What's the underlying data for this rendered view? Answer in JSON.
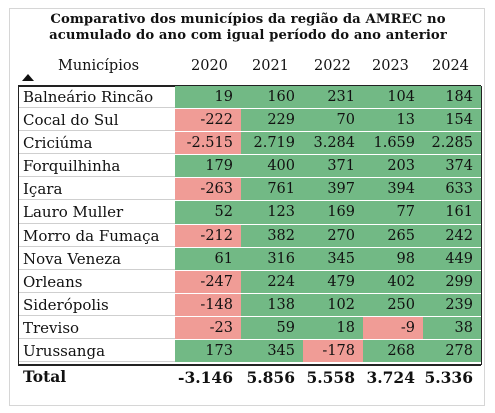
{
  "title": "Comparativo dos municípios da região da AMREC no acumulado do ano com igual período do ano anterior",
  "header": {
    "municipios": "Municípios",
    "years": [
      "2020",
      "2021",
      "2022",
      "2023",
      "2024"
    ]
  },
  "rows": [
    {
      "name": "Balneário Rincão",
      "values": [
        "19",
        "160",
        "231",
        "104",
        "184"
      ],
      "neg": [
        false,
        false,
        false,
        false,
        false
      ]
    },
    {
      "name": "Cocal do Sul",
      "values": [
        "-222",
        "229",
        "70",
        "13",
        "154"
      ],
      "neg": [
        true,
        false,
        false,
        false,
        false
      ]
    },
    {
      "name": "Criciúma",
      "values": [
        "-2.515",
        "2.719",
        "3.284",
        "1.659",
        "2.285"
      ],
      "neg": [
        true,
        false,
        false,
        false,
        false
      ]
    },
    {
      "name": "Forquilhinha",
      "values": [
        "179",
        "400",
        "371",
        "203",
        "374"
      ],
      "neg": [
        false,
        false,
        false,
        false,
        false
      ]
    },
    {
      "name": "Içara",
      "values": [
        "-263",
        "761",
        "397",
        "394",
        "633"
      ],
      "neg": [
        true,
        false,
        false,
        false,
        false
      ]
    },
    {
      "name": "Lauro Muller",
      "values": [
        "52",
        "123",
        "169",
        "77",
        "161"
      ],
      "neg": [
        false,
        false,
        false,
        false,
        false
      ]
    },
    {
      "name": "Morro da Fumaça",
      "values": [
        "-212",
        "382",
        "270",
        "265",
        "242"
      ],
      "neg": [
        true,
        false,
        false,
        false,
        false
      ]
    },
    {
      "name": "Nova Veneza",
      "values": [
        "61",
        "316",
        "345",
        "98",
        "449"
      ],
      "neg": [
        false,
        false,
        false,
        false,
        false
      ]
    },
    {
      "name": "Orleans",
      "values": [
        "-247",
        "224",
        "479",
        "402",
        "299"
      ],
      "neg": [
        true,
        false,
        false,
        false,
        false
      ]
    },
    {
      "name": "Siderópolis",
      "values": [
        "-148",
        "138",
        "102",
        "250",
        "239"
      ],
      "neg": [
        true,
        false,
        false,
        false,
        false
      ]
    },
    {
      "name": "Treviso",
      "values": [
        "-23",
        "59",
        "18",
        "-9",
        "38"
      ],
      "neg": [
        true,
        false,
        false,
        true,
        false
      ]
    },
    {
      "name": "Urussanga",
      "values": [
        "173",
        "345",
        "-178",
        "268",
        "278"
      ],
      "neg": [
        false,
        false,
        true,
        false,
        false
      ]
    }
  ],
  "total": {
    "label": "Total",
    "values": [
      "-3.146",
      "5.856",
      "5.558",
      "3.724",
      "5.336"
    ]
  },
  "colors": {
    "positive": "#72b985",
    "negative": "#f09c96"
  }
}
